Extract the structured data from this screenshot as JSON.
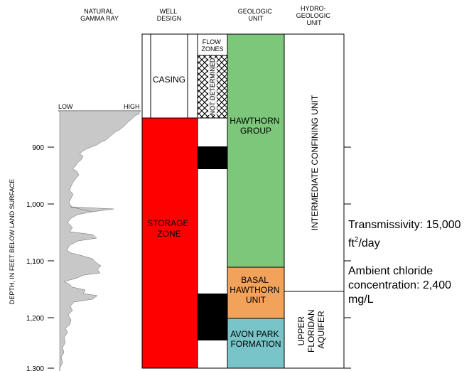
{
  "headers": {
    "gamma": [
      "NATURAL",
      "GAMMA RAY"
    ],
    "well": [
      "WELL",
      "DESIGN"
    ],
    "geologic": [
      "GEOLOGIC",
      "UNIT"
    ],
    "hydro": [
      "HYDRO-",
      "GEOLOGIC",
      "UNIT"
    ]
  },
  "gamma_scale": {
    "low": "LOW",
    "high": "HIGH"
  },
  "axis": {
    "ylabel": "DEPTH, IN FEET BELOW LAND SURFACE",
    "ticks": [
      "900",
      "1,000",
      "1,100",
      "1,200",
      "1,300"
    ]
  },
  "well_design": {
    "casing": "CASING",
    "storage_zone": [
      "STORAGE",
      "ZONE"
    ],
    "flow_zones": [
      "FLOW",
      "ZONES"
    ],
    "not_determined": "NOT DETERMINED"
  },
  "geologic_units": {
    "hawthorn": [
      "HAWTHORN",
      "GROUP"
    ],
    "basal": [
      "BASAL",
      "HAWTHORN",
      "UNIT"
    ],
    "avon_park": [
      "AVON PARK",
      "FORMATION"
    ]
  },
  "hydro_units": {
    "intermediate": "INTERMEDIATE CONFINING UNIT",
    "upper_floridan": [
      "UPPER",
      "FLORIDAN",
      "AQUIFER"
    ]
  },
  "notes": {
    "transmissivity": [
      "Transmissivity: 15,000",
      "ft",
      "2",
      "/day"
    ],
    "chloride": [
      "Ambient chloride",
      "concentration: 2,400",
      "mg/L"
    ]
  },
  "colors": {
    "storage_zone": "#ff0000",
    "hawthorn_group": "#7dc77a",
    "basal_hawthorn": "#f2a25a",
    "avon_park": "#78c4c8",
    "gamma_fill": "#c8c8c8"
  }
}
